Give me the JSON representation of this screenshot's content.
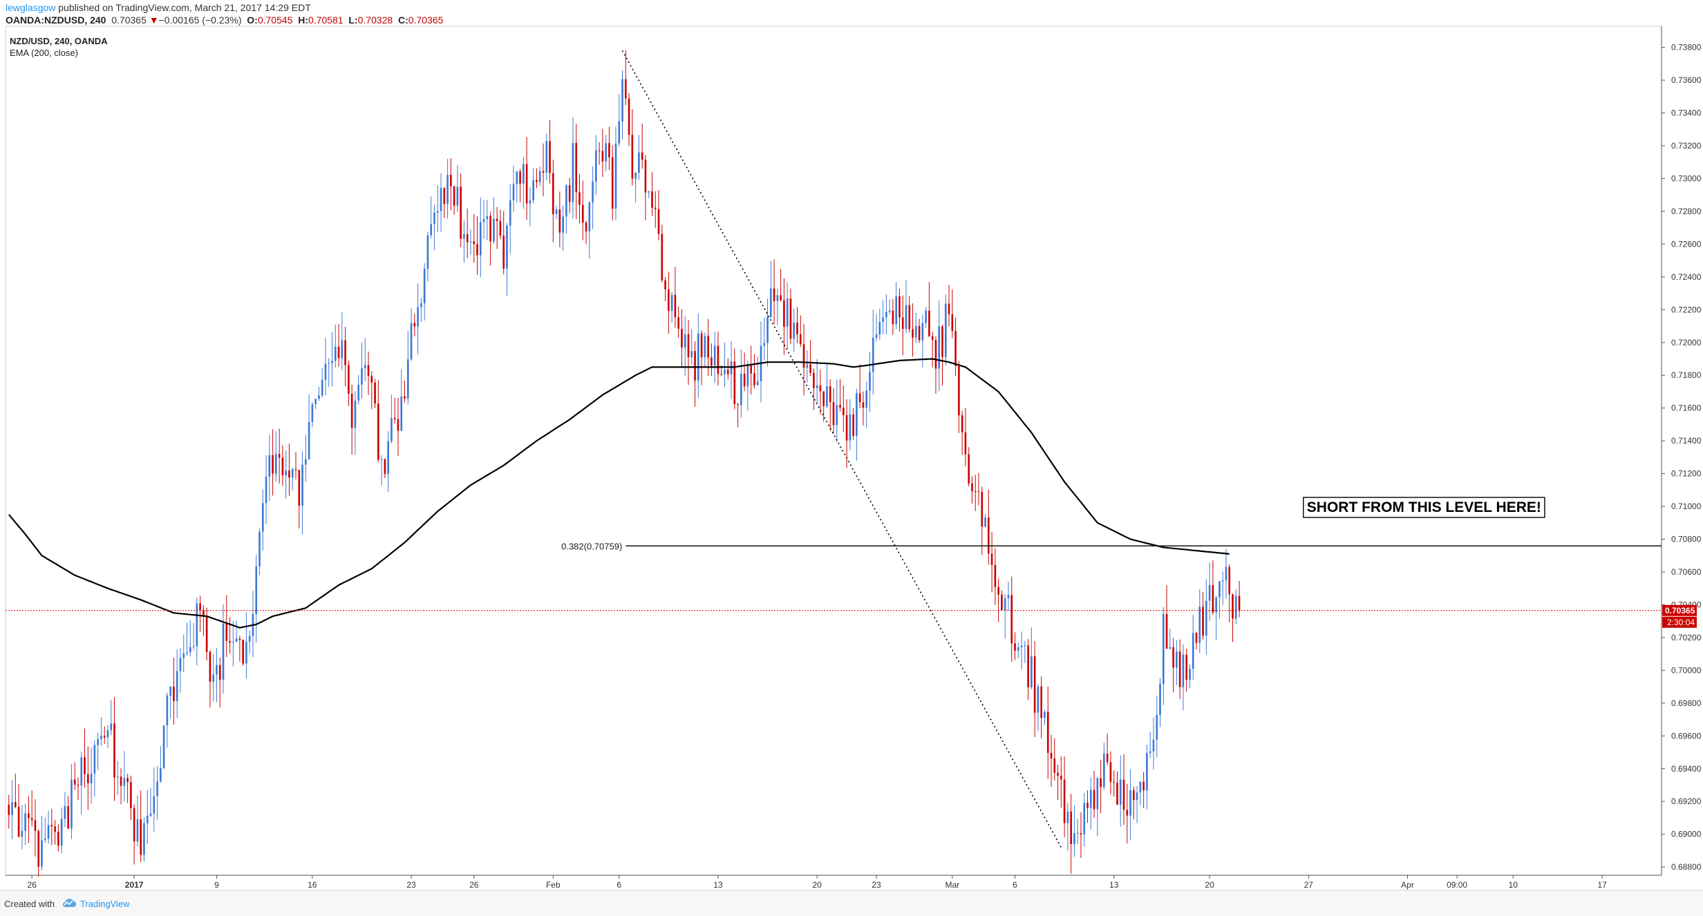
{
  "header": {
    "publisher": "lewglasgow",
    "published_text": " published on TradingView.com, March 21, 2017 14:29 EDT",
    "symbol": "OANDA:NZDUSD, 240",
    "last": "0.70365",
    "change_arrow": "▼",
    "change": "−0.00165 (−0.23%)",
    "o_label": "O:",
    "o_value": "0.70545",
    "h_label": "H:",
    "h_value": "0.70581",
    "l_label": "L:",
    "l_value": "0.70328",
    "c_label": "C:",
    "c_value": "0.70365"
  },
  "legend": {
    "title": "NZD/USD, 240, OANDA",
    "indicator": "EMA (200, close)"
  },
  "footer": {
    "created_with": "Created with",
    "brand": "TradingView"
  },
  "colors": {
    "up": "#3c78d8",
    "down": "#cc0000",
    "ema": "#000000",
    "price_line": "#cc0000",
    "brand": "#2196f3"
  },
  "chart_data": {
    "type": "candlestick",
    "title": "NZD/USD, 240, OANDA",
    "ylim": [
      0.6875,
      0.7387
    ],
    "y_ticks": [
      "0.73800",
      "0.73600",
      "0.73400",
      "0.73200",
      "0.73000",
      "0.72800",
      "0.72600",
      "0.72400",
      "0.72200",
      "0.72000",
      "0.71800",
      "0.71600",
      "0.71400",
      "0.71200",
      "0.71000",
      "0.70800",
      "0.70600",
      "0.70400",
      "0.70200",
      "0.70000",
      "0.69800",
      "0.69600",
      "0.69400",
      "0.69200",
      "0.69000",
      "0.68800"
    ],
    "x_ticks": [
      "26",
      "2017",
      "9",
      "16",
      "23",
      "26",
      "Feb",
      "6",
      "13",
      "20",
      "23",
      "Mar",
      "6",
      "13",
      "20",
      "27",
      "Apr",
      "09:00",
      "10",
      "17"
    ],
    "x_tick_bold": [
      false,
      true,
      false,
      false,
      false,
      false,
      false,
      false,
      false,
      false,
      false,
      false,
      false,
      false,
      false,
      false,
      false,
      false,
      false,
      false
    ],
    "x_tick_index": [
      7,
      38,
      63,
      92,
      122,
      141,
      165,
      185,
      215,
      245,
      263,
      286,
      305,
      335,
      364,
      394,
      424,
      439,
      456,
      483
    ],
    "x_range": [
      -1,
      501
    ],
    "price_anchors": [
      [
        0,
        0.6918
      ],
      [
        8,
        0.6895
      ],
      [
        10,
        0.6885
      ],
      [
        16,
        0.6905
      ],
      [
        24,
        0.6945
      ],
      [
        30,
        0.696
      ],
      [
        36,
        0.692
      ],
      [
        40,
        0.69
      ],
      [
        48,
        0.697
      ],
      [
        55,
        0.7025
      ],
      [
        58,
        0.7035
      ],
      [
        62,
        0.6995
      ],
      [
        66,
        0.702
      ],
      [
        70,
        0.701
      ],
      [
        74,
        0.7025
      ],
      [
        78,
        0.7125
      ],
      [
        84,
        0.7115
      ],
      [
        88,
        0.7105
      ],
      [
        95,
        0.718
      ],
      [
        100,
        0.7205
      ],
      [
        104,
        0.714
      ],
      [
        108,
        0.7185
      ],
      [
        113,
        0.713
      ],
      [
        118,
        0.715
      ],
      [
        124,
        0.723
      ],
      [
        129,
        0.727
      ],
      [
        134,
        0.73
      ],
      [
        139,
        0.725
      ],
      [
        145,
        0.727
      ],
      [
        150,
        0.7255
      ],
      [
        155,
        0.73
      ],
      [
        160,
        0.7285
      ],
      [
        163,
        0.732
      ],
      [
        167,
        0.726
      ],
      [
        171,
        0.731
      ],
      [
        175,
        0.728
      ],
      [
        179,
        0.733
      ],
      [
        183,
        0.7295
      ],
      [
        186,
        0.736
      ],
      [
        188,
        0.7315
      ],
      [
        192,
        0.7305
      ],
      [
        196,
        0.728
      ],
      [
        198,
        0.723
      ],
      [
        202,
        0.721
      ],
      [
        208,
        0.719
      ],
      [
        213,
        0.7195
      ],
      [
        218,
        0.7175
      ],
      [
        222,
        0.717
      ],
      [
        227,
        0.718
      ],
      [
        230,
        0.7225
      ],
      [
        234,
        0.722
      ],
      [
        238,
        0.7205
      ],
      [
        242,
        0.719
      ],
      [
        246,
        0.7175
      ],
      [
        250,
        0.7155
      ],
      [
        254,
        0.715
      ],
      [
        258,
        0.7165
      ],
      [
        262,
        0.72
      ],
      [
        266,
        0.723
      ],
      [
        270,
        0.722
      ],
      [
        274,
        0.72
      ],
      [
        278,
        0.7205
      ],
      [
        282,
        0.7195
      ],
      [
        285,
        0.7225
      ],
      [
        287,
        0.7175
      ],
      [
        289,
        0.714
      ],
      [
        292,
        0.712
      ],
      [
        295,
        0.71
      ],
      [
        298,
        0.706
      ],
      [
        302,
        0.704
      ],
      [
        306,
        0.701
      ],
      [
        310,
        0.6995
      ],
      [
        314,
        0.696
      ],
      [
        318,
        0.6935
      ],
      [
        321,
        0.69
      ],
      [
        324,
        0.6905
      ],
      [
        328,
        0.6925
      ],
      [
        332,
        0.6935
      ],
      [
        336,
        0.6925
      ],
      [
        340,
        0.692
      ],
      [
        344,
        0.693
      ],
      [
        347,
        0.697
      ],
      [
        350,
        0.702
      ],
      [
        353,
        0.7
      ],
      [
        356,
        0.6995
      ],
      [
        360,
        0.702
      ],
      [
        364,
        0.704
      ],
      [
        367,
        0.7045
      ],
      [
        370,
        0.705
      ],
      [
        373,
        0.7036
      ]
    ],
    "ema_anchors": [
      [
        0,
        0.7095
      ],
      [
        5,
        0.7083
      ],
      [
        10,
        0.707
      ],
      [
        20,
        0.7058
      ],
      [
        30,
        0.705
      ],
      [
        40,
        0.7043
      ],
      [
        50,
        0.7035
      ],
      [
        60,
        0.7033
      ],
      [
        70,
        0.7026
      ],
      [
        75,
        0.7028
      ],
      [
        80,
        0.7033
      ],
      [
        90,
        0.7038
      ],
      [
        100,
        0.7052
      ],
      [
        110,
        0.7062
      ],
      [
        120,
        0.7078
      ],
      [
        130,
        0.7097
      ],
      [
        140,
        0.7113
      ],
      [
        150,
        0.7125
      ],
      [
        160,
        0.714
      ],
      [
        170,
        0.7153
      ],
      [
        180,
        0.7168
      ],
      [
        190,
        0.718
      ],
      [
        195,
        0.7185
      ],
      [
        200,
        0.7185
      ],
      [
        210,
        0.7185
      ],
      [
        220,
        0.7185
      ],
      [
        230,
        0.7188
      ],
      [
        240,
        0.7188
      ],
      [
        250,
        0.7187
      ],
      [
        256,
        0.7185
      ],
      [
        260,
        0.7186
      ],
      [
        270,
        0.7189
      ],
      [
        280,
        0.719
      ],
      [
        285,
        0.7188
      ],
      [
        290,
        0.7185
      ],
      [
        300,
        0.717
      ],
      [
        310,
        0.7145
      ],
      [
        320,
        0.7115
      ],
      [
        330,
        0.709
      ],
      [
        340,
        0.708
      ],
      [
        350,
        0.7075
      ],
      [
        360,
        0.7073
      ],
      [
        370,
        0.7071
      ]
    ],
    "num_candles": 374,
    "ema_label": "EMA (200, close)",
    "fib": {
      "label": "0.382(0.70759)",
      "value": 0.70759,
      "x_start": 187,
      "x_end": 501
    },
    "trendline": {
      "x1": 186,
      "y1": 0.7378,
      "x2": 319,
      "y2": 0.6892
    },
    "last_price": {
      "value": 0.70365,
      "label": "0.70365",
      "countdown": "2:30:04"
    },
    "annotation": {
      "text": "SHORT FROM THIS LEVEL HERE!",
      "x": 429,
      "y": 0.71
    }
  }
}
